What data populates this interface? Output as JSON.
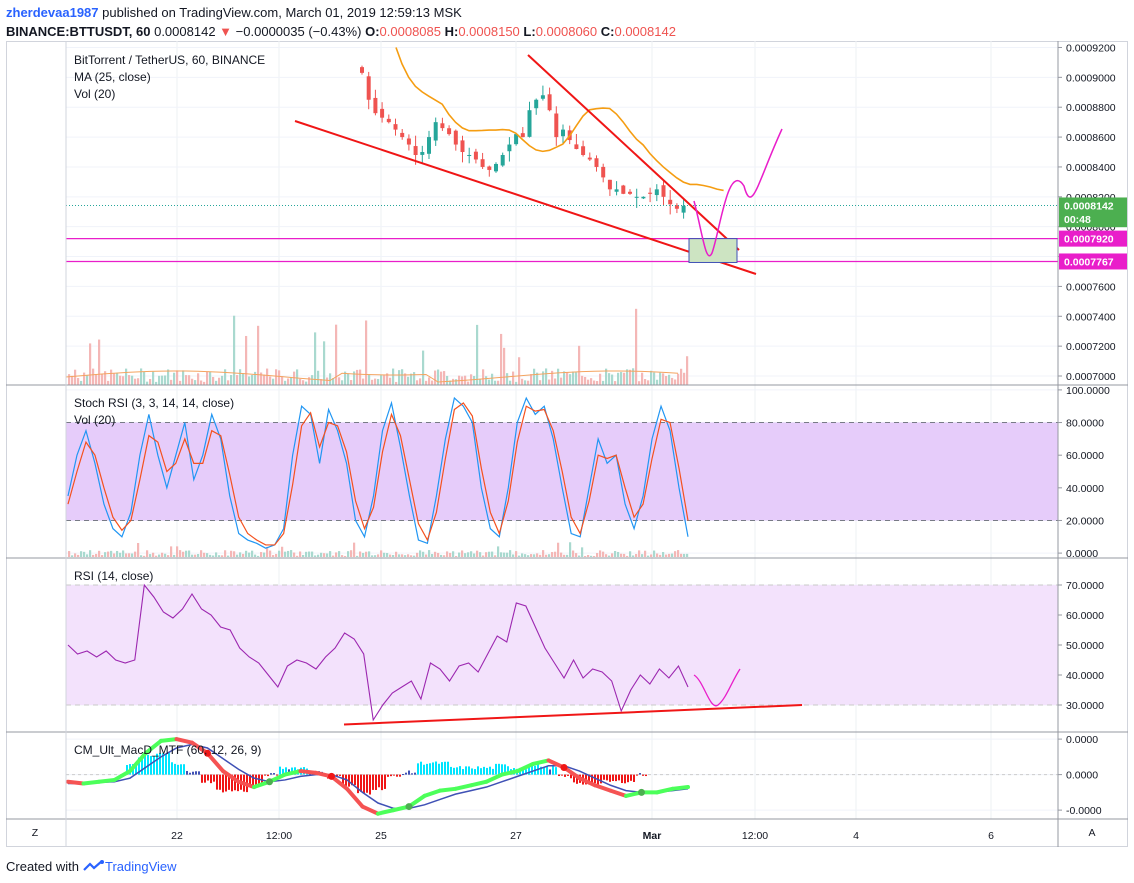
{
  "header": {
    "user": "zherdevaa1987",
    "published": "published on TradingView.com, March 01, 2019 12:59:13 MSK",
    "symbol": "BINANCE:BTTUSDT, 60",
    "last": "0.0008142",
    "change": "−0.0000035 (−0.43%)",
    "o_label": "O:",
    "o": "0.0008085",
    "h_label": "H:",
    "h": "0.0008150",
    "l_label": "L:",
    "l": "0.0008060",
    "c_label": "C:",
    "c": "0.0008142"
  },
  "panes": {
    "main": {
      "title": "BitTorrent / TetherUS, 60, BINANCE",
      "ma": "MA (25, close)",
      "vol": "Vol (20)"
    },
    "stoch": {
      "title": "Stoch RSI (3, 3, 14, 14, close)",
      "vol": "Vol (20)"
    },
    "rsi": {
      "title": "RSI (14, close)"
    },
    "macd": {
      "title": "CM_Ult_MacD_MTF (60, 12, 26, 9)"
    }
  },
  "price_tags": [
    {
      "label": "0.0008142",
      "value": 0.0008142,
      "color": "#4caf50"
    },
    {
      "label": "00:48",
      "value": 0.000805,
      "color": "#4caf50"
    },
    {
      "label": "0.0007920",
      "value": 0.000792,
      "color": "#e91eca"
    },
    {
      "label": "0.0007767",
      "value": 0.0007767,
      "color": "#e91eca"
    }
  ],
  "x_ticks": [
    "22",
    "12:00",
    "25",
    "27",
    "Mar",
    "12:00",
    "4",
    "6"
  ],
  "footer": {
    "created": "Created with",
    "brand": "TradingView"
  },
  "corner": {
    "left": "Z",
    "right": "A"
  },
  "chart_data": [
    {
      "type": "candlestick",
      "title": "BitTorrent / TetherUS, 60, BINANCE",
      "y_ticks": [
        "0.0009200",
        "0.0009000",
        "0.0008800",
        "0.0008600",
        "0.0008400",
        "0.0008200",
        "0.0008000",
        "0.0007800",
        "0.0007600",
        "0.0007400",
        "0.0007200",
        "0.0007000"
      ],
      "y_tick_values": [
        0.00092,
        0.0009,
        0.00088,
        0.00086,
        0.00084,
        0.00082,
        0.0008,
        0.00078,
        0.00076,
        0.00074,
        0.00072,
        0.0007
      ],
      "axis_ylim": [
        0.000698,
        0.000923
      ],
      "ma_label": "MA (25, close)",
      "ma_color": "#f59d12",
      "up_color": "#26a69a",
      "down_color": "#ef5350",
      "close_approx": [
        0.000903,
        0.000885,
        0.000876,
        0.000873,
        0.00087,
        0.000865,
        0.00086,
        0.000855,
        0.000848,
        0.00085,
        0.00086,
        0.00087,
        0.000866,
        0.000862,
        0.000855,
        0.00085,
        0.000848,
        0.000845,
        0.00084,
        0.000838,
        0.000842,
        0.000848,
        0.000855,
        0.000862,
        0.00086,
        0.000878,
        0.000885,
        0.000888,
        0.000878,
        0.00086,
        0.000865,
        0.000858,
        0.000852,
        0.000848,
        0.000845,
        0.00084,
        0.000833,
        0.000825,
        0.000825,
        0.000822,
        0.000822,
        0.00082,
        0.00082,
        0.000822,
        0.000825,
        0.00082,
        0.000815,
        0.000812,
        0.000814
      ],
      "horizontal_levels": [
        0.000792,
        0.0007767
      ],
      "annotations": [
        "falling wedge trendlines",
        "projected path",
        "target box"
      ]
    },
    {
      "type": "line",
      "title": "Stoch RSI (3, 3, 14, 14, close)",
      "y_ticks": [
        "100.0000",
        "80.0000",
        "60.0000",
        "40.0000",
        "20.0000",
        "0.0000"
      ],
      "y_tick_values": [
        100,
        80,
        60,
        40,
        20,
        0
      ],
      "ylim": [
        -3,
        103
      ],
      "band": [
        20,
        80
      ],
      "series": [
        {
          "color": "#2196f3",
          "values": [
            35,
            60,
            75,
            55,
            30,
            15,
            10,
            25,
            60,
            85,
            60,
            40,
            60,
            80,
            45,
            60,
            85,
            70,
            35,
            12,
            8,
            6,
            3,
            5,
            15,
            60,
            90,
            85,
            55,
            88,
            75,
            55,
            20,
            10,
            35,
            75,
            92,
            65,
            35,
            8,
            6,
            35,
            70,
            95,
            90,
            80,
            40,
            15,
            10,
            40,
            80,
            95,
            85,
            90,
            70,
            40,
            12,
            10,
            40,
            70,
            55,
            60,
            30,
            15,
            35,
            70,
            90,
            75,
            40,
            10
          ]
        },
        {
          "color": "#f4511e",
          "values": [
            30,
            50,
            68,
            60,
            40,
            22,
            14,
            20,
            45,
            72,
            68,
            50,
            55,
            70,
            55,
            55,
            75,
            72,
            48,
            22,
            12,
            8,
            5,
            5,
            12,
            42,
            78,
            86,
            65,
            80,
            78,
            62,
            32,
            15,
            28,
            62,
            85,
            72,
            45,
            18,
            8,
            25,
            58,
            88,
            92,
            84,
            52,
            25,
            12,
            32,
            68,
            90,
            87,
            88,
            75,
            50,
            22,
            12,
            32,
            60,
            58,
            60,
            40,
            22,
            30,
            58,
            82,
            80,
            52,
            20
          ]
        }
      ]
    },
    {
      "type": "line",
      "title": "RSI (14, close)",
      "y_ticks": [
        "70.0000",
        "60.0000",
        "50.0000",
        "40.0000",
        "30.0000"
      ],
      "y_tick_values": [
        70,
        60,
        50,
        40,
        30
      ],
      "ylim": [
        21,
        79
      ],
      "band": [
        30,
        70
      ],
      "series": [
        {
          "color": "#9c27b0",
          "values": [
            50,
            47,
            48,
            46,
            48,
            45,
            44,
            45,
            70,
            66,
            61,
            59,
            62,
            67,
            62,
            60,
            56,
            55,
            49,
            46,
            44,
            40,
            36,
            43,
            45,
            44,
            42,
            46,
            49,
            54,
            52,
            47,
            25,
            30,
            34,
            36,
            38,
            32,
            44,
            42,
            38,
            43,
            44,
            41,
            47,
            53,
            51,
            64,
            63,
            56,
            49,
            44,
            39,
            45,
            39,
            42,
            41,
            38,
            28,
            35,
            40,
            37,
            42,
            39,
            43,
            36
          ]
        }
      ],
      "projection_color": "#e91eca",
      "trendline_color": "#f01616"
    },
    {
      "type": "histogram",
      "title": "CM_Ult_MacD_MTF (60, 12, 26, 9)",
      "y_ticks": [
        "0.0000",
        "0.0000",
        "-0.0000"
      ],
      "ylim": [
        -1.25,
        1.2
      ],
      "series": [
        {
          "name": "MACD",
          "color": "#4caf50",
          "values": [
            -0.2,
            -0.25,
            -0.2,
            -0.15,
            0.1,
            0.6,
            0.95,
            1.0,
            0.9,
            0.6,
            0.1,
            -0.2,
            -0.35,
            -0.2,
            0.0,
            0.1,
            0.05,
            -0.05,
            -0.4,
            -0.9,
            -1.1,
            -1.0,
            -0.9,
            -0.6,
            -0.45,
            -0.4,
            -0.3,
            -0.2,
            0.0,
            0.1,
            0.3,
            0.4,
            0.2,
            -0.1,
            -0.3,
            -0.45,
            -0.6,
            -0.5,
            -0.5,
            -0.4,
            -0.35
          ]
        },
        {
          "name": "Signal",
          "color": "#3f51b5",
          "values": [
            -0.25,
            -0.25,
            -0.22,
            -0.2,
            -0.1,
            0.2,
            0.5,
            0.75,
            0.85,
            0.75,
            0.45,
            0.15,
            -0.1,
            -0.2,
            -0.15,
            -0.05,
            0.0,
            0.0,
            -0.15,
            -0.5,
            -0.8,
            -0.95,
            -0.95,
            -0.85,
            -0.7,
            -0.55,
            -0.45,
            -0.35,
            -0.2,
            -0.05,
            0.1,
            0.25,
            0.25,
            0.1,
            -0.1,
            -0.3,
            -0.45,
            -0.5,
            -0.5,
            -0.45,
            -0.4
          ]
        }
      ]
    }
  ]
}
